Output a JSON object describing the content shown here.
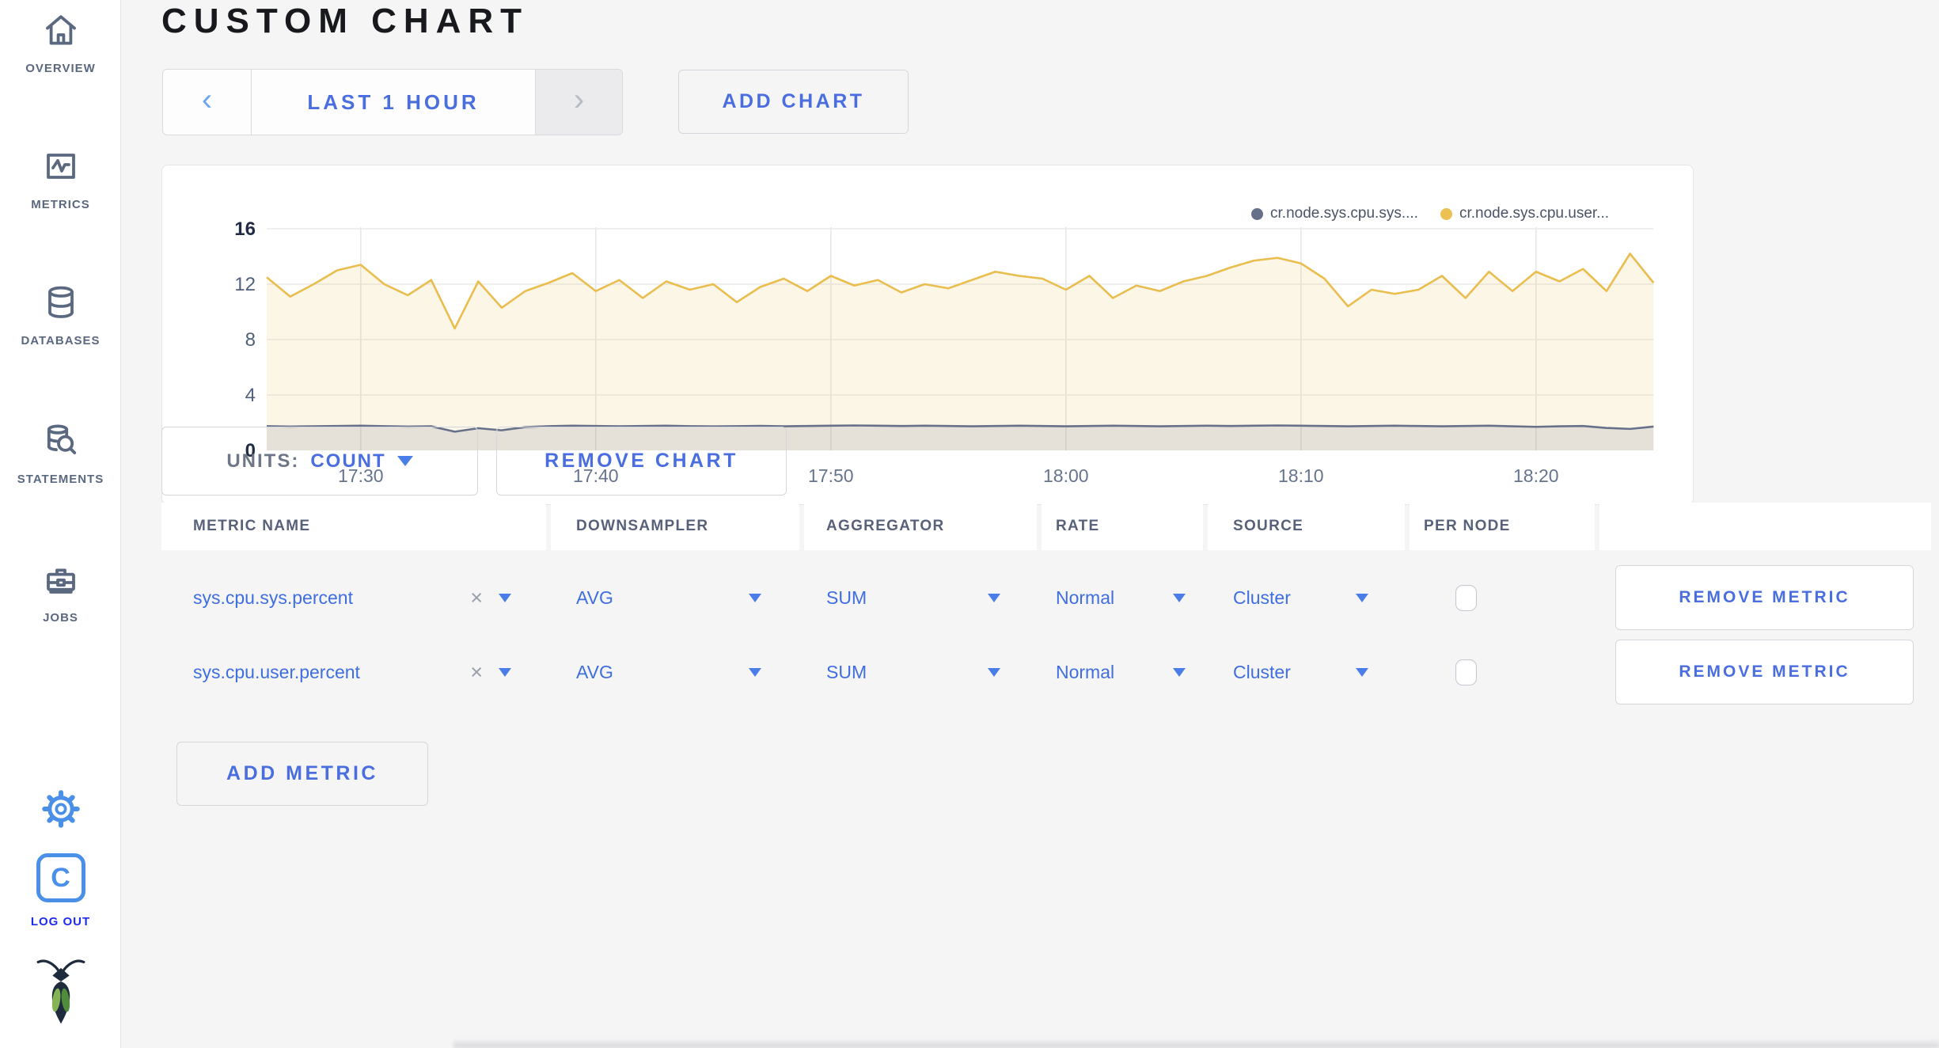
{
  "page": {
    "title": "CUSTOM CHART"
  },
  "colors": {
    "accent_blue": "#4a6ee0",
    "bright_blue": "#4a90e8",
    "logout_blue": "#1f2cf0",
    "sidebar_slate": "#5a6880",
    "page_bg": "#f5f5f6",
    "series_sys": "#667089",
    "series_user": "#ecc052"
  },
  "sidebar": {
    "items": [
      {
        "label": "OVERVIEW",
        "icon": "home-icon"
      },
      {
        "label": "METRICS",
        "icon": "metrics-icon"
      },
      {
        "label": "DATABASES",
        "icon": "database-icon"
      },
      {
        "label": "STATEMENTS",
        "icon": "statements-icon"
      },
      {
        "label": "JOBS",
        "icon": "briefcase-icon"
      }
    ],
    "logout_label": "LOG OUT"
  },
  "toolbar": {
    "prev_symbol": "‹",
    "next_symbol": "›",
    "time_range_label": "LAST 1 HOUR",
    "add_chart_label": "ADD CHART"
  },
  "units_bar": {
    "units_label": "UNITS:",
    "units_value": "COUNT",
    "remove_chart_label": "REMOVE CHART"
  },
  "metrics_table": {
    "headers": [
      "METRIC NAME",
      "DOWNSAMPLER",
      "AGGREGATOR",
      "RATE",
      "SOURCE",
      "PER NODE"
    ],
    "clear_symbol": "×",
    "rows": [
      {
        "metric_name": "sys.cpu.sys.percent",
        "downsampler": "AVG",
        "aggregator": "SUM",
        "rate": "Normal",
        "source": "Cluster",
        "per_node_checked": false,
        "remove_label": "REMOVE METRIC"
      },
      {
        "metric_name": "sys.cpu.user.percent",
        "downsampler": "AVG",
        "aggregator": "SUM",
        "rate": "Normal",
        "source": "Cluster",
        "per_node_checked": false,
        "remove_label": "REMOVE METRIC"
      }
    ],
    "add_metric_label": "ADD METRIC"
  },
  "chart_data": {
    "type": "line",
    "title": "",
    "xlabel": "",
    "ylabel": "",
    "ylim": [
      0,
      16
    ],
    "y_ticks": [
      0,
      4,
      8,
      12,
      16
    ],
    "grid": true,
    "legend_position": "top-right",
    "x_start": "17:26",
    "x_step_minutes": 1,
    "x_ticks": [
      {
        "label": "17:30",
        "index": 4
      },
      {
        "label": "17:40",
        "index": 14
      },
      {
        "label": "17:50",
        "index": 24
      },
      {
        "label": "18:00",
        "index": 34
      },
      {
        "label": "18:10",
        "index": 44
      },
      {
        "label": "18:20",
        "index": 54
      }
    ],
    "series": [
      {
        "name": "cr.node.sys.cpu.sys....",
        "color": "#667089",
        "line_color": "#68718a",
        "fill": "rgba(101,110,131,0.15)",
        "values": [
          1.75,
          1.72,
          1.74,
          1.76,
          1.78,
          1.75,
          1.72,
          1.74,
          1.35,
          1.6,
          1.45,
          1.68,
          1.75,
          1.78,
          1.76,
          1.74,
          1.76,
          1.78,
          1.75,
          1.73,
          1.75,
          1.77,
          1.74,
          1.76,
          1.78,
          1.8,
          1.78,
          1.76,
          1.78,
          1.76,
          1.74,
          1.76,
          1.78,
          1.76,
          1.74,
          1.76,
          1.78,
          1.76,
          1.74,
          1.76,
          1.78,
          1.76,
          1.78,
          1.8,
          1.78,
          1.76,
          1.74,
          1.76,
          1.78,
          1.76,
          1.74,
          1.76,
          1.78,
          1.74,
          1.7,
          1.74,
          1.76,
          1.62,
          1.55,
          1.72
        ]
      },
      {
        "name": "cr.node.sys.cpu.user...",
        "color": "#ecc052",
        "line_color": "#e9bd4e",
        "fill": "rgba(236,192,82,0.14)",
        "values": [
          12.5,
          11.1,
          12.0,
          13.0,
          13.4,
          12.0,
          11.2,
          12.3,
          8.8,
          12.2,
          10.3,
          11.5,
          12.1,
          12.8,
          11.5,
          12.3,
          11.0,
          12.2,
          11.6,
          12.0,
          10.7,
          11.8,
          12.4,
          11.5,
          12.6,
          11.9,
          12.3,
          11.4,
          12.0,
          11.7,
          12.3,
          12.9,
          12.6,
          12.4,
          11.6,
          12.6,
          11.0,
          11.9,
          11.5,
          12.2,
          12.6,
          13.2,
          13.7,
          13.9,
          13.5,
          12.4,
          10.4,
          11.6,
          11.3,
          11.6,
          12.6,
          11.0,
          12.9,
          11.5,
          12.9,
          12.2,
          13.1,
          11.5,
          14.2,
          12.1
        ]
      }
    ]
  }
}
